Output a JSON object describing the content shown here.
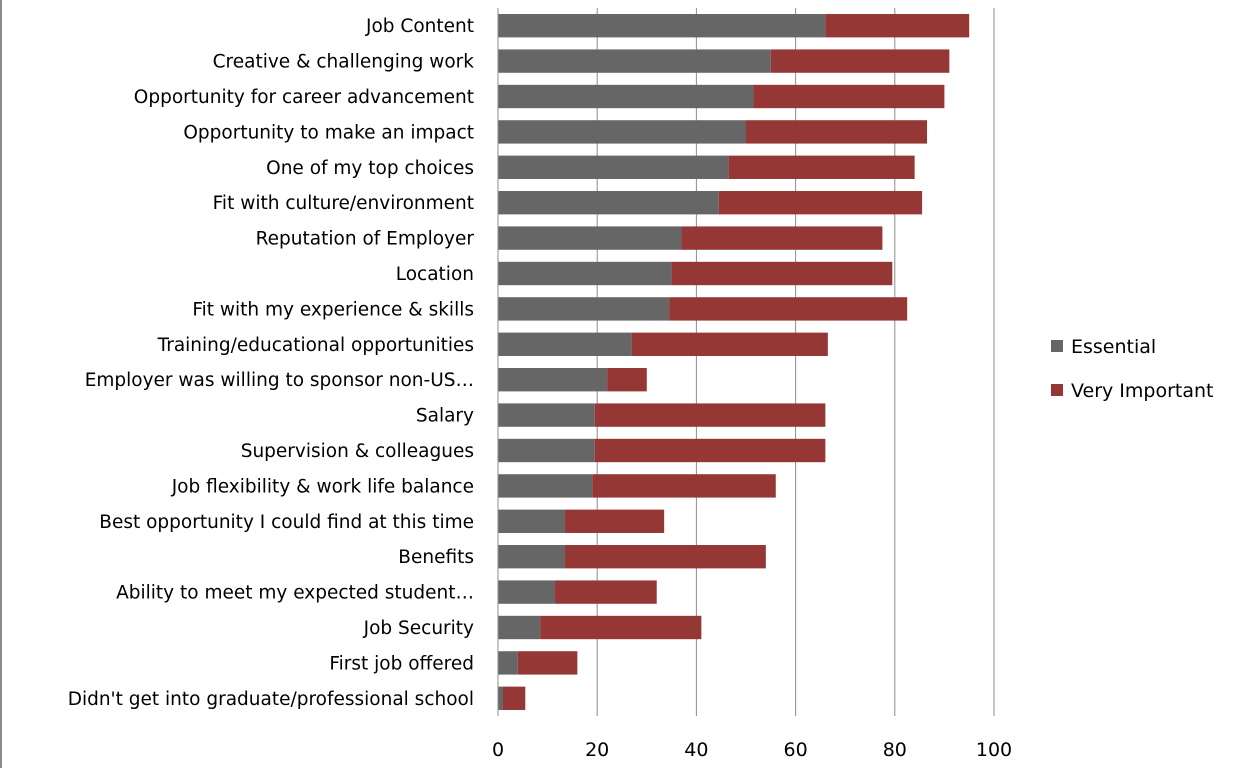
{
  "chart_data": {
    "type": "bar",
    "orientation": "horizontal",
    "stacked": true,
    "categories": [
      "Job Content",
      "Creative & challenging work",
      "Opportunity for career advancement",
      "Opportunity to make an impact",
      "One of my top choices",
      "Fit with culture/environment",
      "Reputation of Employer",
      "Location",
      "Fit with my experience & skills",
      "Training/educational opportunities",
      "Employer was willing to sponsor non-US…",
      "Salary",
      "Supervision & colleagues",
      "Job flexibility & work life balance",
      "Best opportunity I could find at this time",
      "Benefits",
      "Ability to meet my expected student…",
      "Job Security",
      "First job offered",
      "Didn't get into graduate/professional school"
    ],
    "series": [
      {
        "name": "Essential",
        "color": "#666666",
        "values": [
          66,
          55,
          51.5,
          50,
          46.5,
          44.5,
          37,
          35,
          34.5,
          27,
          22,
          19.5,
          19.5,
          19,
          13.5,
          13.5,
          11.5,
          8.5,
          4,
          1
        ]
      },
      {
        "name": "Very Important",
        "color": "#953735",
        "values": [
          29,
          36,
          38.5,
          36.5,
          37.5,
          41,
          40.5,
          44.5,
          48,
          39.5,
          8,
          46.5,
          46.5,
          37,
          20,
          40.5,
          20.5,
          32.5,
          12,
          4.5
        ]
      }
    ],
    "x_ticks": [
      "0",
      "20",
      "40",
      "60",
      "80",
      "100"
    ],
    "xlim": [
      0,
      100
    ],
    "grid": true,
    "legend_position": "right"
  }
}
